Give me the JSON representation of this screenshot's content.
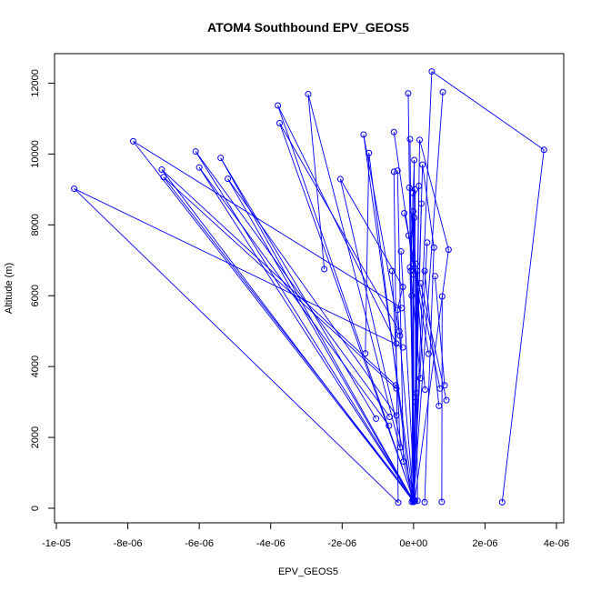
{
  "chart_data": {
    "type": "scatter",
    "title": "ATOM4 Southbound EPV_GEOS5",
    "xlabel": "EPV_GEOS5",
    "ylabel": "Altitude (m)",
    "xlim": [
      -1e-05,
      4e-06
    ],
    "ylim": [
      0,
      12500
    ],
    "x_ticks": [
      -1e-05,
      -8e-06,
      -6e-06,
      -4e-06,
      -2e-06,
      0,
      2e-06,
      4e-06
    ],
    "x_tick_labels": [
      "-1e-05",
      "-8e-06",
      "-6e-06",
      "-4e-06",
      "-2e-06",
      "0e+00",
      "2e-06",
      "4e-06"
    ],
    "y_ticks": [
      0,
      2000,
      4000,
      6000,
      8000,
      10000,
      12000
    ],
    "y_tick_labels": [
      "0",
      "2000",
      "4000",
      "6000",
      "8000",
      "10000",
      "12000"
    ],
    "grid": false,
    "series_color": "#0000ff",
    "points": [
      [
        -4.3e-07,
        160
      ],
      [
        -9.5e-06,
        9020
      ],
      [
        4e-08,
        200
      ],
      [
        -7e-06,
        9350
      ],
      [
        0,
        250
      ],
      [
        -3.75e-06,
        10870
      ],
      [
        0,
        230
      ],
      [
        -2.95e-06,
        11690
      ],
      [
        1e-08,
        190
      ],
      [
        -1.4e-06,
        10550
      ],
      [
        -5e-08,
        180
      ],
      [
        -1.25e-06,
        10030
      ],
      [
        0,
        210
      ],
      [
        -7.85e-06,
        10360
      ],
      [
        0,
        220
      ],
      [
        -6.1e-06,
        10070
      ],
      [
        1e-08,
        200
      ],
      [
        -3.8e-06,
        11370
      ],
      [
        -2e-08,
        240
      ],
      [
        -6e-06,
        9620
      ],
      [
        0,
        190
      ],
      [
        -5.4e-06,
        9890
      ],
      [
        0,
        180
      ],
      [
        -5.2e-06,
        9300
      ],
      [
        -1e-08,
        200
      ],
      [
        -7.05e-06,
        9560
      ],
      [
        3e-08,
        200
      ],
      [
        -2.05e-06,
        9290
      ],
      [
        -5.5e-07,
        9500
      ],
      [
        -6e-07,
        6700
      ],
      [
        -4.5e-07,
        9530
      ],
      [
        -3.5e-07,
        7250
      ],
      [
        -5.5e-07,
        10620
      ],
      [
        -4.5e-07,
        5600
      ],
      [
        -1.5e-07,
        11710
      ],
      [
        -1e-07,
        10420
      ],
      [
        2e-08,
        9830
      ],
      [
        -5e-08,
        6000
      ],
      [
        -1e-08,
        8380
      ],
      [
        1.7e-07,
        10400
      ],
      [
        2.5e-07,
        9700
      ],
      [
        5.1e-07,
        12330
      ],
      [
        8.2e-07,
        11750
      ],
      [
        3.8e-07,
        7500
      ],
      [
        9.8e-07,
        7300
      ],
      [
        3.65e-06,
        10120
      ],
      [
        5.7e-07,
        7360
      ],
      [
        8e-07,
        5980
      ],
      [
        6e-07,
        6550
      ],
      [
        3.1e-07,
        6700
      ],
      [
        2e-07,
        6350
      ],
      [
        6e-08,
        6900
      ],
      [
        1.5e-07,
        9100
      ],
      [
        4e-08,
        9000
      ],
      [
        -1.2e-07,
        9050
      ],
      [
        -2.6e-07,
        8330
      ],
      [
        -1.4e-07,
        7700
      ],
      [
        -2e-08,
        6900
      ],
      [
        -8e-08,
        6700
      ],
      [
        -3e-07,
        6250
      ],
      [
        -2.5e-06,
        6750
      ],
      [
        -3.3e-07,
        5650
      ],
      [
        -4e-07,
        5000
      ],
      [
        -3.8e-07,
        4870
      ],
      [
        -4.8e-07,
        4650
      ],
      [
        -3e-07,
        4540
      ],
      [
        -1.35e-06,
        4370
      ],
      [
        -5e-07,
        3470
      ],
      [
        -4.8e-07,
        3380
      ],
      [
        -1.05e-06,
        2530
      ],
      [
        -6.7e-07,
        2580
      ],
      [
        -6.9e-07,
        2330
      ],
      [
        -4.8e-07,
        2620
      ],
      [
        -3.7e-07,
        1720
      ],
      [
        -2.8e-07,
        1320
      ],
      [
        1.9e-07,
        3670
      ],
      [
        8e-08,
        3250
      ],
      [
        3.2e-07,
        3350
      ],
      [
        7.4e-07,
        3380
      ],
      [
        8.7e-07,
        3470
      ],
      [
        9.2e-07,
        3050
      ],
      [
        7.1e-07,
        2890
      ],
      [
        4.2e-07,
        4360
      ],
      [
        6e-08,
        3000
      ],
      [
        3.1e-07,
        170
      ],
      [
        7.9e-07,
        180
      ],
      [
        2.48e-06,
        170
      ],
      [
        1.1e-07,
        210
      ],
      [
        -1e-07,
        6800
      ],
      [
        0,
        6600
      ],
      [
        1e-07,
        6700
      ],
      [
        -2e-08,
        8900
      ],
      [
        2e-08,
        8200
      ],
      [
        2.2e-07,
        8600
      ]
    ],
    "segments": [
      [
        0,
        1
      ],
      [
        2,
        3
      ],
      [
        4,
        5
      ],
      [
        6,
        7
      ],
      [
        8,
        9
      ],
      [
        10,
        11
      ],
      [
        12,
        13
      ],
      [
        14,
        15
      ],
      [
        16,
        17
      ],
      [
        18,
        19
      ],
      [
        20,
        21
      ],
      [
        22,
        23
      ],
      [
        24,
        25
      ],
      [
        26,
        27
      ],
      [
        1,
        65
      ],
      [
        3,
        68
      ],
      [
        5,
        62
      ],
      [
        7,
        60
      ],
      [
        9,
        63
      ],
      [
        11,
        66
      ],
      [
        13,
        61
      ],
      [
        15,
        70
      ],
      [
        17,
        64
      ],
      [
        19,
        71
      ],
      [
        21,
        69
      ],
      [
        23,
        72
      ],
      [
        25,
        67
      ],
      [
        27,
        59
      ],
      [
        28,
        0
      ],
      [
        29,
        73
      ],
      [
        30,
        74
      ],
      [
        31,
        2
      ],
      [
        32,
        57
      ],
      [
        33,
        4
      ],
      [
        34,
        6
      ],
      [
        35,
        8
      ],
      [
        36,
        10
      ],
      [
        37,
        12
      ],
      [
        38,
        14
      ],
      [
        39,
        16
      ],
      [
        40,
        18
      ],
      [
        41,
        20
      ],
      [
        42,
        22
      ],
      [
        43,
        24
      ],
      [
        44,
        26
      ],
      [
        45,
        86
      ],
      [
        46,
        84
      ],
      [
        47,
        85
      ],
      [
        48,
        79
      ],
      [
        49,
        81
      ],
      [
        50,
        80
      ],
      [
        51,
        87
      ],
      [
        52,
        76
      ],
      [
        53,
        83
      ],
      [
        54,
        77
      ],
      [
        55,
        78
      ],
      [
        56,
        82
      ],
      [
        58,
        75
      ],
      [
        88,
        2
      ],
      [
        89,
        4
      ],
      [
        90,
        6
      ],
      [
        91,
        8
      ],
      [
        92,
        10
      ],
      [
        93,
        12
      ],
      [
        39,
        44
      ],
      [
        40,
        46
      ],
      [
        41,
        45
      ],
      [
        33,
        59
      ],
      [
        36,
        58
      ]
    ]
  }
}
